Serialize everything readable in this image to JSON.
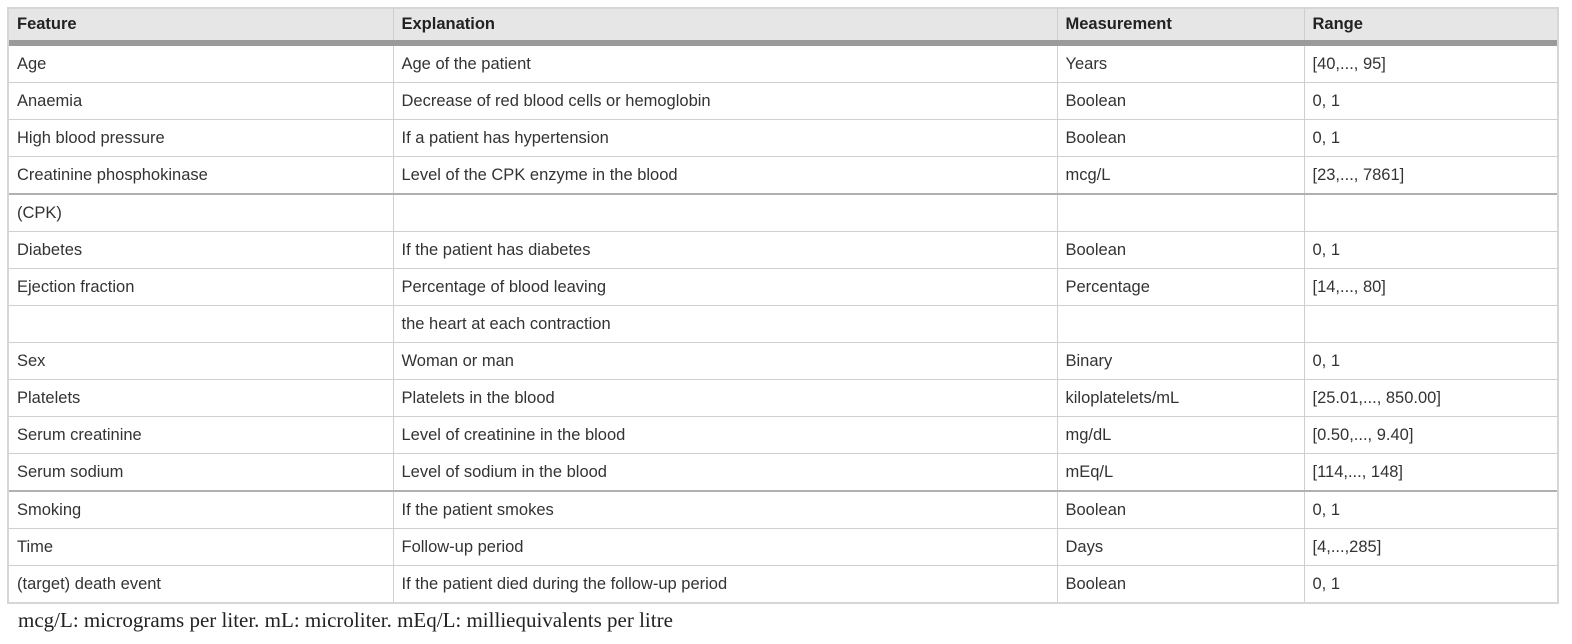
{
  "table": {
    "headers": [
      "Feature",
      "Explanation",
      "Measurement",
      "Range"
    ],
    "rows": [
      [
        "Age",
        "Age of the patient",
        "Years",
        "[40,..., 95]"
      ],
      [
        "Anaemia",
        "Decrease of red blood cells or hemoglobin",
        "Boolean",
        "0, 1"
      ],
      [
        "High blood pressure",
        "If a patient has hypertension",
        "Boolean",
        "0, 1"
      ],
      [
        "Creatinine phosphokinase",
        "Level of the CPK enzyme in the blood",
        "mcg/L",
        "[23,..., 7861]"
      ],
      [
        "(CPK)",
        "",
        "",
        ""
      ],
      [
        "Diabetes",
        "If the patient has diabetes",
        "Boolean",
        "0, 1"
      ],
      [
        "Ejection fraction",
        "Percentage of blood leaving",
        "Percentage",
        "[14,..., 80]"
      ],
      [
        "",
        "the heart at each contraction",
        "",
        ""
      ],
      [
        "Sex",
        "Woman or man",
        "Binary",
        "0, 1"
      ],
      [
        "Platelets",
        "Platelets in the blood",
        "kiloplatelets/mL",
        "[25.01,..., 850.00]"
      ],
      [
        "Serum creatinine",
        "Level of creatinine in the blood",
        "mg/dL",
        "[0.50,..., 9.40]"
      ],
      [
        "Serum sodium",
        "Level of sodium in the blood",
        "mEq/L",
        "[114,..., 148]"
      ],
      [
        "Smoking",
        "If the patient smokes",
        "Boolean",
        "0, 1"
      ],
      [
        "Time",
        "Follow-up period",
        "Days",
        "[4,...,285]"
      ],
      [
        "(target) death event",
        "If the patient died during the follow-up period",
        "Boolean",
        "0, 1"
      ]
    ]
  },
  "footnote": "mcg/L: micrograms per liter. mL: microliter. mEq/L: milliequivalents per litre"
}
